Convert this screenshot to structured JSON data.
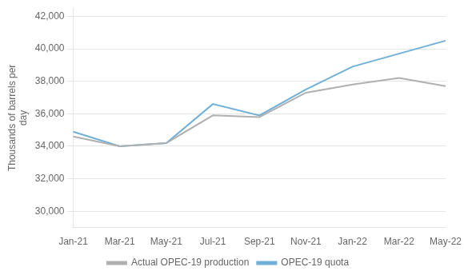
{
  "chart_data": {
    "type": "line",
    "y_label": "Thousands of barrels per\nday",
    "categories": [
      "Jan-21",
      "Mar-21",
      "May-21",
      "Jul-21",
      "Sep-21",
      "Nov-21",
      "Jan-22",
      "Mar-22",
      "May-22"
    ],
    "series": [
      {
        "name": "Actual OPEC-19 production",
        "color": "#b0b0b0",
        "values": [
          34600,
          34000,
          34200,
          35900,
          35800,
          37300,
          37800,
          38200,
          37700
        ]
      },
      {
        "name": "OPEC-19 quota",
        "color": "#70b0d8",
        "values": [
          34900,
          34000,
          34200,
          36600,
          35900,
          37500,
          38900,
          39700,
          40500
        ]
      }
    ],
    "ylim": [
      29000,
      42500
    ],
    "yticks": [
      {
        "value": 30000,
        "label": "30,000"
      },
      {
        "value": 32000,
        "label": "32,000"
      },
      {
        "value": 34000,
        "label": "34,000"
      },
      {
        "value": 36000,
        "label": "36,000"
      },
      {
        "value": 38000,
        "label": "38,000"
      },
      {
        "value": 40000,
        "label": "40,000"
      },
      {
        "value": 42000,
        "label": "42,000"
      }
    ],
    "grid": true,
    "legend": "bottom"
  }
}
